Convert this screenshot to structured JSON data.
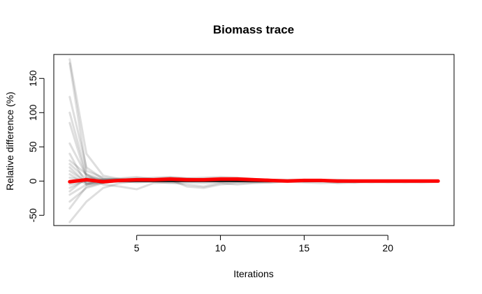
{
  "chart_data": {
    "type": "line",
    "title": "Biomass trace",
    "xlabel": "Iterations",
    "ylabel": "Relative difference (%)",
    "xlim": [
      0.05,
      23.95
    ],
    "ylim": [
      -65,
      185
    ],
    "xticks": [
      5,
      10,
      15,
      20
    ],
    "yticks": [
      -50,
      0,
      50,
      100,
      150
    ],
    "grid": false,
    "legend": "none",
    "colors": {
      "traces": "#000000",
      "traces_opacity": 0.13,
      "median": "#ff0000"
    },
    "x": [
      1,
      2,
      3,
      4,
      5,
      6,
      7,
      8,
      9,
      10,
      11,
      12,
      13,
      14,
      15,
      16,
      17,
      18,
      19,
      20,
      21,
      22,
      23
    ],
    "series": [
      {
        "values": [
          178,
          40,
          8,
          3,
          1,
          1,
          0,
          0,
          0,
          0,
          0,
          0,
          0,
          0,
          0,
          0,
          0,
          0,
          0,
          0,
          0,
          0,
          0
        ]
      },
      {
        "values": [
          172,
          15,
          5,
          2,
          1,
          0,
          0,
          0,
          0,
          0,
          0,
          0,
          0,
          0,
          0,
          0,
          0,
          0,
          0,
          0,
          0,
          0,
          0
        ]
      },
      {
        "values": [
          123,
          20,
          3,
          1,
          0,
          0,
          1,
          0,
          0,
          0,
          0,
          0,
          0,
          0,
          0,
          0,
          0,
          0,
          0,
          0,
          0,
          0,
          0
        ]
      },
      {
        "values": [
          100,
          10,
          2,
          0,
          0,
          0,
          0,
          0,
          0,
          0,
          0,
          0,
          0,
          0,
          0,
          0,
          0,
          0,
          0,
          0,
          0,
          0,
          0
        ]
      },
      {
        "values": [
          85,
          5,
          0,
          -1,
          0,
          0,
          0,
          0,
          0,
          0,
          0,
          0,
          0,
          0,
          0,
          0,
          0,
          0,
          0,
          0,
          0,
          0,
          0
        ]
      },
      {
        "values": [
          55,
          8,
          1,
          0,
          0,
          0,
          0,
          0,
          0,
          0,
          0,
          0,
          0,
          0,
          0,
          0,
          0,
          0,
          0,
          0,
          0,
          0,
          0
        ]
      },
      {
        "values": [
          40,
          -5,
          -2,
          0,
          0,
          0,
          0,
          0,
          0,
          0,
          0,
          0,
          0,
          0,
          0,
          0,
          0,
          0,
          0,
          0,
          0,
          0,
          0
        ]
      },
      {
        "values": [
          25,
          3,
          0,
          0,
          0,
          0,
          0,
          0,
          0,
          0,
          0,
          0,
          0,
          0,
          0,
          0,
          0,
          0,
          0,
          0,
          0,
          0,
          0
        ]
      },
      {
        "values": [
          15,
          -2,
          0,
          0,
          0,
          0,
          0,
          0,
          0,
          0,
          0,
          0,
          0,
          0,
          0,
          0,
          0,
          0,
          0,
          0,
          0,
          0,
          0
        ]
      },
      {
        "values": [
          5,
          0,
          0,
          0,
          0,
          0,
          0,
          0,
          0,
          0,
          0,
          0,
          0,
          0,
          0,
          0,
          0,
          0,
          0,
          0,
          0,
          0,
          0
        ]
      },
      {
        "values": [
          -10,
          2,
          0,
          0,
          0,
          0,
          0,
          0,
          0,
          0,
          0,
          0,
          0,
          0,
          0,
          0,
          0,
          0,
          0,
          0,
          0,
          0,
          0
        ]
      },
      {
        "values": [
          -20,
          -5,
          0,
          0,
          0,
          0,
          0,
          0,
          0,
          0,
          0,
          0,
          0,
          0,
          0,
          0,
          0,
          0,
          0,
          0,
          0,
          0,
          0
        ]
      },
      {
        "values": [
          -30,
          -10,
          -3,
          0,
          0,
          0,
          0,
          0,
          0,
          0,
          0,
          0,
          0,
          0,
          0,
          0,
          0,
          0,
          0,
          0,
          0,
          0,
          0
        ]
      },
      {
        "values": [
          -40,
          -8,
          -2,
          0,
          0,
          0,
          0,
          0,
          0,
          0,
          0,
          0,
          0,
          0,
          0,
          0,
          0,
          0,
          0,
          0,
          0,
          0,
          0
        ]
      },
      {
        "values": [
          -60,
          -30,
          -10,
          -3,
          0,
          0,
          0,
          0,
          0,
          0,
          0,
          0,
          0,
          0,
          0,
          0,
          0,
          0,
          0,
          0,
          0,
          0,
          0
        ]
      },
      {
        "values": [
          30,
          10,
          -5,
          -8,
          -12,
          -3,
          -2,
          -5,
          -8,
          -3,
          -5,
          -3,
          -2,
          0,
          -1,
          0,
          -3,
          -2,
          -1,
          -2,
          -1,
          -2,
          -1
        ]
      },
      {
        "values": [
          -15,
          5,
          2,
          4,
          6,
          3,
          2,
          -8,
          -10,
          -5,
          -3,
          -2,
          -1,
          0,
          0,
          0,
          0,
          -2,
          0,
          0,
          0,
          0,
          0
        ]
      },
      {
        "values": [
          10,
          -5,
          3,
          2,
          3,
          5,
          6,
          4,
          5,
          6,
          5,
          3,
          2,
          2,
          2,
          1,
          2,
          1,
          1,
          1,
          1,
          1,
          1
        ]
      },
      {
        "values": [
          -5,
          0,
          1,
          3,
          4,
          3,
          5,
          4,
          2,
          1,
          0,
          0,
          0,
          0,
          0,
          0,
          -1,
          0,
          0,
          0,
          0,
          0,
          0
        ]
      },
      {
        "values": [
          20,
          -3,
          -2,
          0,
          -2,
          -1,
          -3,
          -2,
          -3,
          -2,
          -1,
          -1,
          -2,
          -1,
          -2,
          -3,
          -2,
          -1,
          -2,
          -1,
          -2,
          -1,
          -1
        ]
      }
    ],
    "median": {
      "values": [
        -1,
        2,
        -1,
        1,
        2,
        2,
        3,
        2,
        2,
        3,
        3,
        2,
        1,
        0,
        1,
        1,
        0,
        0,
        0,
        0,
        0,
        0,
        0
      ]
    }
  }
}
